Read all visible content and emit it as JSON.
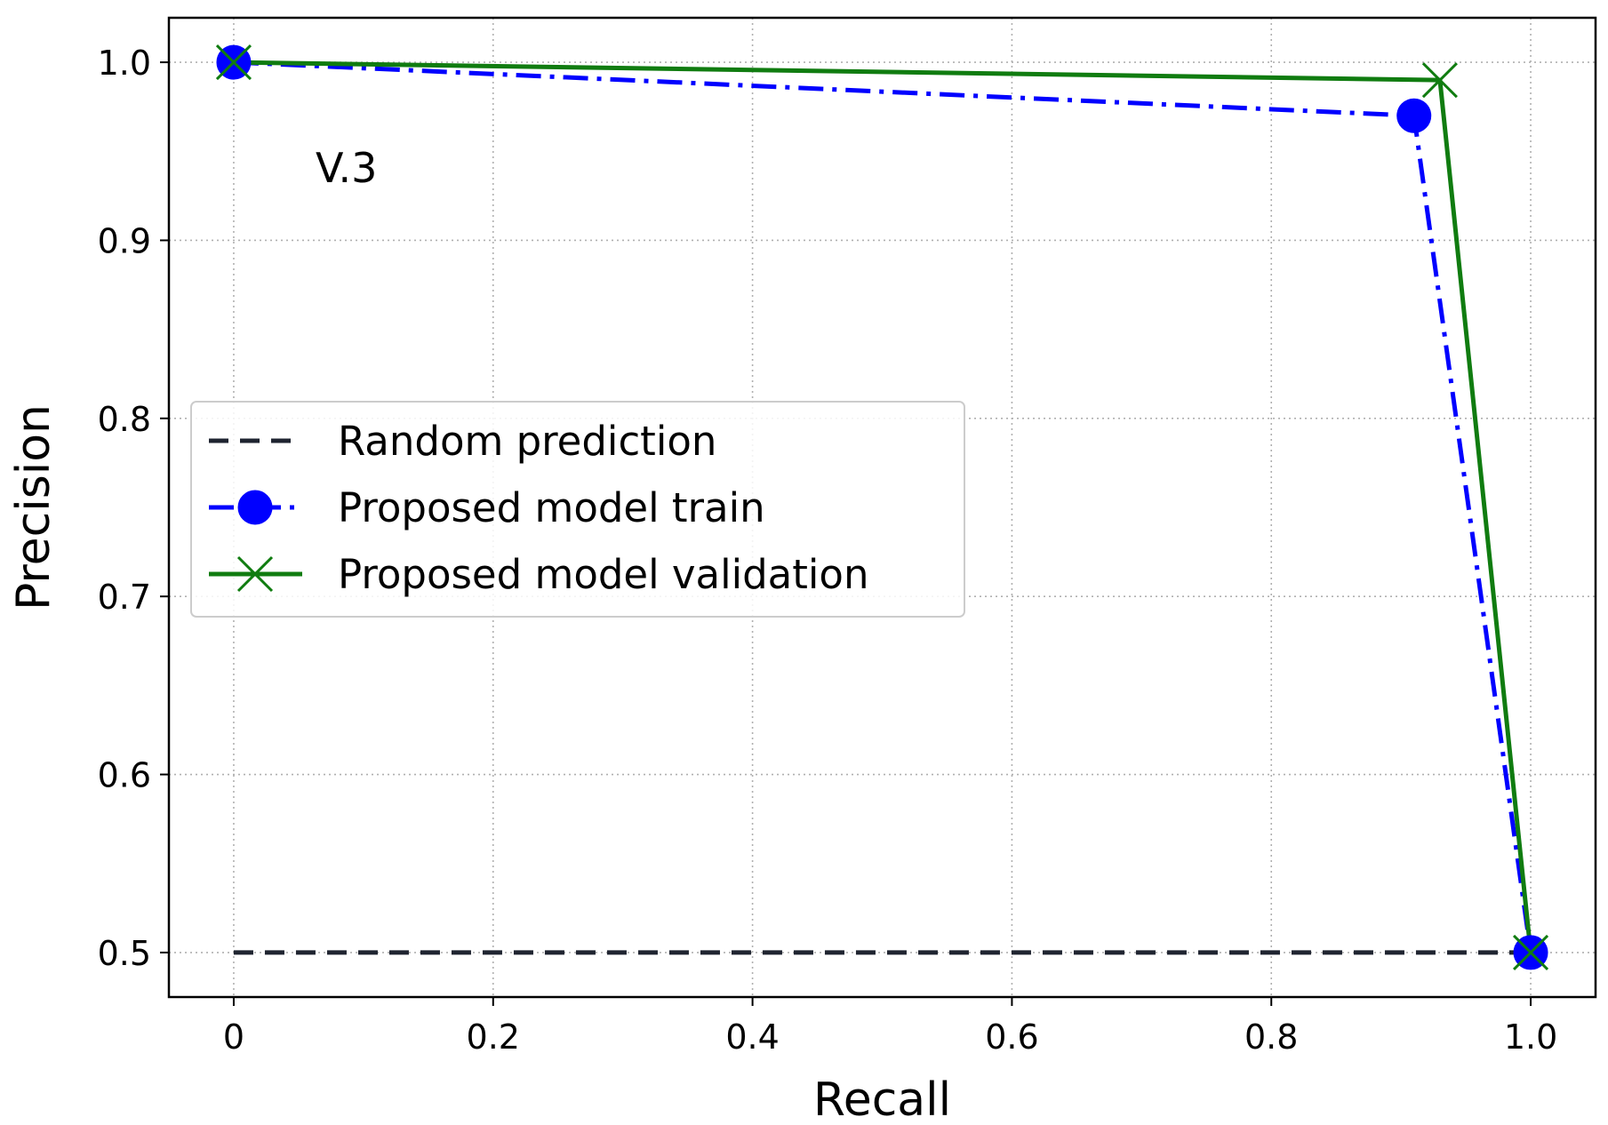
{
  "chart_data": {
    "type": "line",
    "title": "",
    "xlabel": "Recall",
    "ylabel": "Precision",
    "xlim": [
      -0.05,
      1.05
    ],
    "ylim": [
      0.475,
      1.025
    ],
    "xticks": [
      0,
      0.2,
      0.4,
      0.6,
      0.8,
      1.0
    ],
    "xtick_labels": [
      "0",
      "0.2",
      "0.4",
      "0.6",
      "0.8",
      "1.0"
    ],
    "yticks": [
      0.5,
      0.6,
      0.7,
      0.8,
      0.9,
      1.0
    ],
    "ytick_labels": [
      "0.5",
      "0.6",
      "0.7",
      "0.8",
      "0.9",
      "1.0"
    ],
    "grid": true,
    "annotation": "V.3",
    "legend_position": "center-left",
    "series": [
      {
        "name": "Random prediction",
        "color": "#1f2430",
        "line_style": "dashed",
        "marker": "none",
        "x": [
          0,
          1.0
        ],
        "y": [
          0.5,
          0.5
        ]
      },
      {
        "name": "Proposed model train",
        "color": "#0000ff",
        "line_style": "dashdot",
        "marker": "circle",
        "x": [
          0,
          0.91,
          1.0
        ],
        "y": [
          1.0,
          0.97,
          0.5
        ]
      },
      {
        "name": "Proposed model validation",
        "color": "#107c10",
        "line_style": "solid",
        "marker": "x",
        "x": [
          0,
          0.93,
          1.0
        ],
        "y": [
          1.0,
          0.99,
          0.5
        ]
      }
    ]
  }
}
